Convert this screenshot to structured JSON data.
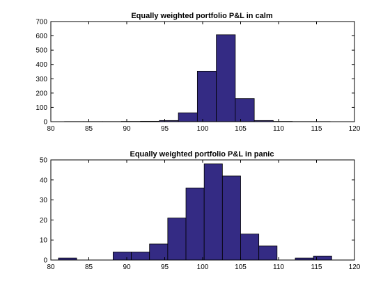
{
  "colors": {
    "bar_fill": "#342b84",
    "bar_edge": "#000000",
    "axis": "#000000",
    "background": "#ffffff"
  },
  "chart_data": [
    {
      "type": "bar",
      "title": "Equally weighted portfolio P&L in calm",
      "xlabel": "",
      "ylabel": "",
      "xlim": [
        80,
        120
      ],
      "ylim": [
        0,
        700
      ],
      "xticks": [
        80,
        85,
        90,
        95,
        100,
        105,
        110,
        115,
        120
      ],
      "yticks": [
        0,
        100,
        200,
        300,
        400,
        500,
        600,
        700
      ],
      "bin_edges": [
        81.8,
        84.3,
        86.8,
        89.3,
        91.8,
        94.3,
        96.8,
        99.3,
        101.8,
        104.3,
        106.8,
        109.3,
        111.8,
        114.3,
        116.8
      ],
      "values": [
        1,
        1,
        1,
        2,
        3,
        8,
        62,
        353,
        608,
        162,
        8,
        2,
        1,
        1
      ]
    },
    {
      "type": "bar",
      "title": "Equally weighted portfolio P&L in panic",
      "xlabel": "",
      "ylabel": "",
      "xlim": [
        80,
        120
      ],
      "ylim": [
        0,
        50
      ],
      "xticks": [
        80,
        85,
        90,
        95,
        100,
        105,
        110,
        115,
        120
      ],
      "yticks": [
        0,
        10,
        20,
        30,
        40,
        50
      ],
      "bin_edges": [
        81.0,
        83.4,
        85.8,
        88.2,
        90.6,
        93.0,
        95.4,
        97.8,
        100.2,
        102.6,
        105.0,
        107.4,
        109.8,
        112.2,
        114.6,
        117.0
      ],
      "values": [
        1,
        0,
        0,
        4,
        4,
        8,
        21,
        36,
        48,
        42,
        13,
        7,
        0,
        1,
        2
      ]
    }
  ]
}
